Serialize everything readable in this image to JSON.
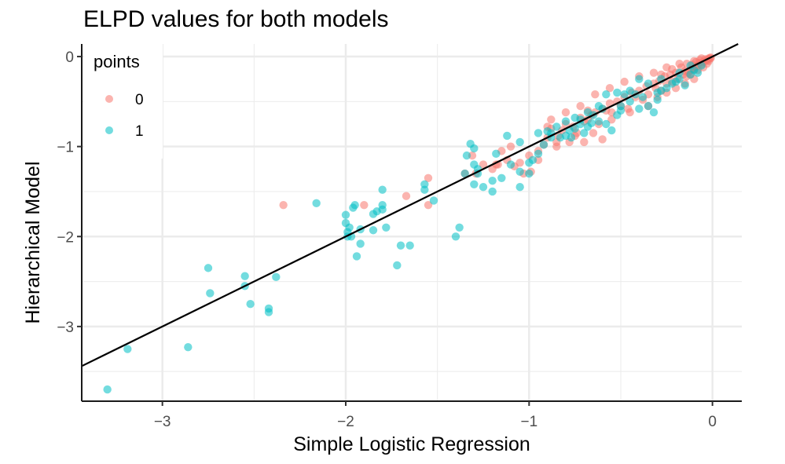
{
  "chart_data": {
    "type": "scatter",
    "title": "ELPD values for both models",
    "xlabel": "Simple Logistic Regression",
    "ylabel": "Hierarchical Model",
    "xlim": [
      -3.44,
      0.16
    ],
    "ylim": [
      -3.83,
      0.14
    ],
    "x_ticks": [
      -3,
      -2,
      -1,
      0
    ],
    "y_ticks": [
      -3,
      -2,
      -1,
      0
    ],
    "x_tick_labels": [
      "−3",
      "−2",
      "−1",
      "0"
    ],
    "y_tick_labels": [
      "−3",
      "−2",
      "−1",
      "0"
    ],
    "grid": true,
    "legend": {
      "title": "points",
      "position": "top-left-inside"
    },
    "reference_line": {
      "slope": 1,
      "intercept": 0
    },
    "colors": {
      "0": "#F8766D",
      "1": "#00BFC4"
    },
    "series": [
      {
        "name": "0",
        "points": [
          [
            -2.34,
            -1.65
          ],
          [
            -1.9,
            -1.65
          ],
          [
            -1.55,
            -1.35
          ],
          [
            -1.55,
            -1.65
          ],
          [
            -1.67,
            -1.55
          ],
          [
            -1.35,
            -1.3
          ],
          [
            -1.29,
            -1.3
          ],
          [
            -1.25,
            -1.2
          ],
          [
            -1.18,
            -1.2
          ],
          [
            -1.12,
            -1.15
          ],
          [
            -1.08,
            -1.22
          ],
          [
            -1.05,
            -1.18
          ],
          [
            -1.15,
            -1.05
          ],
          [
            -1.0,
            -1.1
          ],
          [
            -0.95,
            -1.15
          ],
          [
            -0.99,
            -1.28
          ],
          [
            -1.03,
            -1.3
          ],
          [
            -1.17,
            -1.2
          ],
          [
            -1.2,
            -1.25
          ],
          [
            -1.31,
            -1.1
          ],
          [
            -0.9,
            -0.9
          ],
          [
            -0.85,
            -0.95
          ],
          [
            -0.82,
            -0.82
          ],
          [
            -0.78,
            -0.95
          ],
          [
            -0.74,
            -0.85
          ],
          [
            -0.7,
            -0.72
          ],
          [
            -0.66,
            -0.65
          ],
          [
            -0.62,
            -0.75
          ],
          [
            -0.58,
            -0.6
          ],
          [
            -0.55,
            -0.62
          ],
          [
            -0.5,
            -0.55
          ],
          [
            -0.46,
            -0.58
          ],
          [
            -0.42,
            -0.45
          ],
          [
            -0.38,
            -0.48
          ],
          [
            -0.35,
            -0.42
          ],
          [
            -0.31,
            -0.35
          ],
          [
            -0.28,
            -0.38
          ],
          [
            -0.25,
            -0.3
          ],
          [
            -0.22,
            -0.28
          ],
          [
            -0.19,
            -0.25
          ],
          [
            -0.16,
            -0.2
          ],
          [
            -0.14,
            -0.22
          ],
          [
            -0.12,
            -0.15
          ],
          [
            -0.1,
            -0.14
          ],
          [
            -0.08,
            -0.1
          ],
          [
            -0.06,
            -0.09
          ],
          [
            -0.05,
            -0.06
          ],
          [
            -0.04,
            -0.05
          ],
          [
            -0.03,
            -0.04
          ],
          [
            -0.02,
            -0.03
          ],
          [
            -0.01,
            -0.02
          ],
          [
            -0.01,
            -0.01
          ],
          [
            -0.02,
            -0.02
          ],
          [
            -0.04,
            -0.03
          ],
          [
            -0.07,
            -0.07
          ],
          [
            -0.09,
            -0.11
          ],
          [
            -0.11,
            -0.13
          ],
          [
            -0.13,
            -0.18
          ],
          [
            -0.15,
            -0.16
          ],
          [
            -0.17,
            -0.12
          ],
          [
            -0.2,
            -0.18
          ],
          [
            -0.23,
            -0.2
          ],
          [
            -0.26,
            -0.22
          ],
          [
            -0.29,
            -0.27
          ],
          [
            -0.32,
            -0.3
          ],
          [
            -0.36,
            -0.33
          ],
          [
            -0.4,
            -0.38
          ],
          [
            -0.44,
            -0.4
          ],
          [
            -0.48,
            -0.45
          ],
          [
            -0.52,
            -0.5
          ],
          [
            -0.56,
            -0.52
          ],
          [
            -0.6,
            -0.58
          ],
          [
            -0.64,
            -0.62
          ],
          [
            -0.68,
            -0.7
          ],
          [
            -0.72,
            -0.68
          ],
          [
            -0.76,
            -0.78
          ],
          [
            -0.8,
            -0.75
          ],
          [
            -0.84,
            -0.88
          ],
          [
            -0.88,
            -0.8
          ],
          [
            -0.92,
            -0.98
          ],
          [
            -0.3,
            -0.45
          ],
          [
            -0.25,
            -0.4
          ],
          [
            -0.35,
            -0.55
          ],
          [
            -0.45,
            -0.62
          ],
          [
            -0.55,
            -0.7
          ],
          [
            -0.65,
            -0.85
          ],
          [
            -0.75,
            -0.88
          ],
          [
            -0.85,
            -1.0
          ],
          [
            -0.95,
            -1.05
          ],
          [
            -0.2,
            -0.35
          ],
          [
            -0.15,
            -0.3
          ],
          [
            -0.1,
            -0.25
          ],
          [
            -0.18,
            -0.08
          ],
          [
            -0.25,
            -0.12
          ],
          [
            -0.32,
            -0.18
          ],
          [
            -0.4,
            -0.22
          ],
          [
            -0.48,
            -0.28
          ],
          [
            -0.56,
            -0.35
          ],
          [
            -0.64,
            -0.42
          ],
          [
            -0.72,
            -0.55
          ],
          [
            -0.8,
            -0.62
          ],
          [
            -0.88,
            -0.7
          ],
          [
            -0.05,
            -0.12
          ],
          [
            -0.08,
            -0.15
          ],
          [
            -0.12,
            -0.2
          ],
          [
            -0.06,
            -0.02
          ],
          [
            -0.1,
            -0.05
          ],
          [
            -0.14,
            -0.08
          ],
          [
            -0.22,
            -0.14
          ],
          [
            -0.28,
            -0.2
          ],
          [
            -0.02,
            -0.05
          ],
          [
            -0.03,
            -0.08
          ],
          [
            -0.07,
            -0.04
          ],
          [
            -0.09,
            -0.06
          ],
          [
            -0.11,
            -0.09
          ],
          [
            -0.6,
            -0.92
          ],
          [
            -0.7,
            -0.95
          ],
          [
            -1.1,
            -1.0
          ],
          [
            -0.9,
            -0.78
          ],
          [
            -0.68,
            -0.6
          ]
        ]
      },
      {
        "name": "1",
        "points": [
          [
            -3.3,
            -3.7
          ],
          [
            -3.19,
            -3.25
          ],
          [
            -2.86,
            -3.23
          ],
          [
            -2.75,
            -2.35
          ],
          [
            -2.74,
            -2.63
          ],
          [
            -2.55,
            -2.44
          ],
          [
            -2.55,
            -2.55
          ],
          [
            -2.52,
            -2.75
          ],
          [
            -2.42,
            -2.8
          ],
          [
            -2.42,
            -2.84
          ],
          [
            -2.38,
            -2.45
          ],
          [
            -2.16,
            -1.63
          ],
          [
            -2.0,
            -1.76
          ],
          [
            -2.0,
            -1.85
          ],
          [
            -1.99,
            -1.95
          ],
          [
            -1.99,
            -2.0
          ],
          [
            -1.98,
            -1.9
          ],
          [
            -1.97,
            -2.0
          ],
          [
            -1.96,
            -1.68
          ],
          [
            -1.95,
            -1.65
          ],
          [
            -1.94,
            -2.22
          ],
          [
            -1.92,
            -2.08
          ],
          [
            -1.92,
            -1.92
          ],
          [
            -1.85,
            -1.93
          ],
          [
            -1.85,
            -1.75
          ],
          [
            -1.83,
            -1.72
          ],
          [
            -1.8,
            -1.7
          ],
          [
            -1.8,
            -1.65
          ],
          [
            -1.8,
            -1.48
          ],
          [
            -1.78,
            -1.9
          ],
          [
            -1.72,
            -2.32
          ],
          [
            -1.7,
            -2.1
          ],
          [
            -1.65,
            -2.1
          ],
          [
            -1.57,
            -1.42
          ],
          [
            -1.57,
            -1.48
          ],
          [
            -1.52,
            -1.6
          ],
          [
            -1.4,
            -2.0
          ],
          [
            -1.38,
            -1.9
          ],
          [
            -1.35,
            -1.3
          ],
          [
            -1.34,
            -1.1
          ],
          [
            -1.32,
            -0.97
          ],
          [
            -1.3,
            -1.02
          ],
          [
            -1.3,
            -1.2
          ],
          [
            -1.28,
            -1.25
          ],
          [
            -1.28,
            -1.3
          ],
          [
            -1.25,
            -1.45
          ],
          [
            -1.2,
            -1.5
          ],
          [
            -1.2,
            -1.38
          ],
          [
            -1.15,
            -1.35
          ],
          [
            -1.12,
            -0.88
          ],
          [
            -1.1,
            -1.2
          ],
          [
            -1.05,
            -1.45
          ],
          [
            -1.05,
            -1.28
          ],
          [
            -1.0,
            -1.3
          ],
          [
            -0.98,
            -1.15
          ],
          [
            -0.95,
            -1.08
          ],
          [
            -0.92,
            -0.98
          ],
          [
            -0.9,
            -0.83
          ],
          [
            -0.88,
            -0.85
          ],
          [
            -0.85,
            -0.78
          ],
          [
            -0.83,
            -0.9
          ],
          [
            -0.8,
            -0.88
          ],
          [
            -0.8,
            -0.72
          ],
          [
            -0.77,
            -0.9
          ],
          [
            -0.75,
            -0.8
          ],
          [
            -0.72,
            -0.7
          ],
          [
            -0.7,
            -0.85
          ],
          [
            -0.68,
            -0.78
          ],
          [
            -0.65,
            -0.65
          ],
          [
            -0.62,
            -0.72
          ],
          [
            -0.6,
            -0.58
          ],
          [
            -0.58,
            -0.75
          ],
          [
            -0.55,
            -0.82
          ],
          [
            -0.52,
            -0.65
          ],
          [
            -0.5,
            -0.55
          ],
          [
            -0.48,
            -0.42
          ],
          [
            -0.45,
            -0.5
          ],
          [
            -0.42,
            -0.42
          ],
          [
            -0.38,
            -0.45
          ],
          [
            -0.35,
            -0.55
          ],
          [
            -0.32,
            -0.62
          ],
          [
            -0.3,
            -0.48
          ],
          [
            -0.28,
            -0.38
          ],
          [
            -0.25,
            -0.35
          ],
          [
            -0.22,
            -0.3
          ],
          [
            -0.2,
            -0.28
          ],
          [
            -0.18,
            -0.25
          ],
          [
            -0.15,
            -0.32
          ],
          [
            -0.12,
            -0.2
          ],
          [
            -0.1,
            -0.15
          ],
          [
            -0.08,
            -0.18
          ],
          [
            -0.06,
            -0.1
          ],
          [
            -0.58,
            -0.42
          ],
          [
            -0.52,
            -0.4
          ],
          [
            -0.45,
            -0.38
          ],
          [
            -0.4,
            -0.25
          ],
          [
            -0.62,
            -0.55
          ],
          [
            -0.68,
            -0.62
          ],
          [
            -0.75,
            -0.68
          ],
          [
            -1.3,
            -1.42
          ],
          [
            -1.18,
            -1.08
          ],
          [
            -1.05,
            -0.95
          ],
          [
            -0.95,
            -0.85
          ],
          [
            -0.35,
            -0.3
          ],
          [
            -0.28,
            -0.25
          ],
          [
            -0.18,
            -0.18
          ],
          [
            -0.12,
            -0.1
          ],
          [
            -0.72,
            -0.75
          ],
          [
            -0.78,
            -0.82
          ],
          [
            -0.88,
            -0.9
          ],
          [
            -0.3,
            -0.4
          ],
          [
            -0.4,
            -0.58
          ],
          [
            -0.5,
            -0.6
          ],
          [
            -0.66,
            -0.74
          ],
          [
            -1.0,
            -1.18
          ]
        ]
      }
    ]
  }
}
